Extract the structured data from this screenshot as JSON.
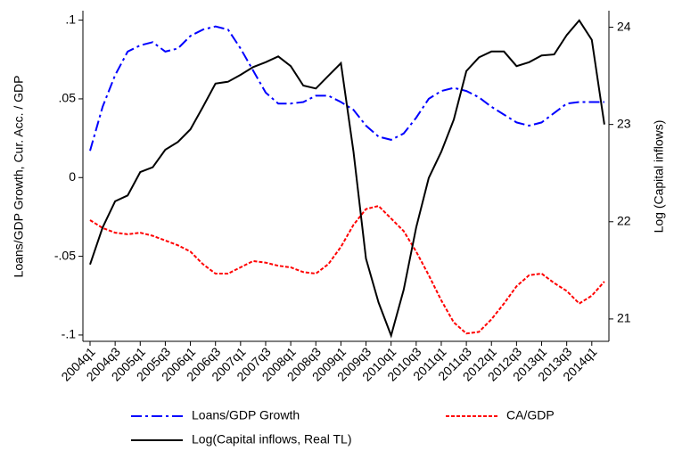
{
  "chart_data": {
    "type": "line",
    "y_label": "Loans/GDP Growth, Cur. Acc. / GDP",
    "y2_label": "Log (Capital inflows)",
    "categories": [
      "2004q1",
      null,
      "2004q3",
      null,
      "2005q1",
      null,
      "2005q3",
      null,
      "2006q1",
      null,
      "2006q3",
      null,
      "2007q1",
      null,
      "2007q3",
      null,
      "2008q1",
      null,
      "2008q3",
      null,
      "2009q1",
      null,
      "2009q3",
      null,
      "2010q1",
      null,
      "2010q3",
      null,
      "2011q1",
      null,
      "2011q3",
      null,
      "2012q1",
      null,
      "2012q3",
      null,
      "2013q1",
      null,
      "2013q3",
      null,
      "2014q1",
      null
    ],
    "ylim": [
      -0.104,
      0.106
    ],
    "yticks": [
      {
        "value": 0.1,
        "label": ".1"
      },
      {
        "value": 0.05,
        "label": ".05"
      },
      0,
      {
        "value": -0.05,
        "label": "-.05"
      },
      {
        "value": -0.1,
        "label": "-.1"
      }
    ],
    "y2lim": [
      20.77,
      24.17
    ],
    "y2ticks": [
      21,
      22,
      23,
      24
    ],
    "series": [
      {
        "name": "Loans/GDP Growth",
        "color": "#0000ff",
        "dash": "12 4 3 4",
        "values": [
          0.017,
          0.045,
          0.065,
          0.08,
          0.084,
          0.086,
          0.08,
          0.082,
          0.09,
          0.094,
          0.096,
          0.094,
          0.082,
          0.068,
          0.054,
          0.047,
          0.047,
          0.048,
          0.052,
          0.052,
          0.048,
          0.043,
          0.033,
          0.026,
          0.024,
          0.028,
          0.038,
          0.05,
          0.055,
          0.057,
          0.055,
          0.051,
          0.045,
          0.04,
          0.035,
          0.033,
          0.035,
          0.041,
          0.047,
          0.048,
          0.048,
          0.048
        ]
      },
      {
        "name": "CA/GDP",
        "color": "#ff0000",
        "dash": "4 2",
        "values": [
          -0.027,
          -0.032,
          -0.035,
          -0.036,
          -0.035,
          -0.037,
          -0.04,
          -0.043,
          -0.047,
          -0.055,
          -0.061,
          -0.061,
          -0.057,
          -0.053,
          -0.054,
          -0.056,
          -0.057,
          -0.06,
          -0.061,
          -0.055,
          -0.044,
          -0.03,
          -0.02,
          -0.018,
          -0.026,
          -0.034,
          -0.047,
          -0.062,
          -0.078,
          -0.092,
          -0.099,
          -0.098,
          -0.09,
          -0.08,
          -0.069,
          -0.062,
          -0.061,
          -0.067,
          -0.072,
          -0.08,
          -0.075,
          -0.066
        ]
      },
      {
        "name": "Log(Capital inflows, Real TL)",
        "color": "#000000",
        "axis": "y2",
        "values": [
          21.56,
          21.94,
          22.21,
          22.27,
          22.51,
          22.56,
          22.74,
          22.82,
          22.95,
          23.18,
          23.42,
          23.44,
          23.51,
          23.59,
          23.64,
          23.7,
          23.6,
          23.4,
          23.37,
          23.5,
          23.63,
          22.72,
          21.62,
          21.17,
          20.83,
          21.3,
          21.94,
          22.45,
          22.72,
          23.05,
          23.55,
          23.69,
          23.75,
          23.75,
          23.6,
          23.64,
          23.71,
          23.72,
          23.92,
          24.07,
          23.87,
          23.0
        ]
      }
    ]
  }
}
